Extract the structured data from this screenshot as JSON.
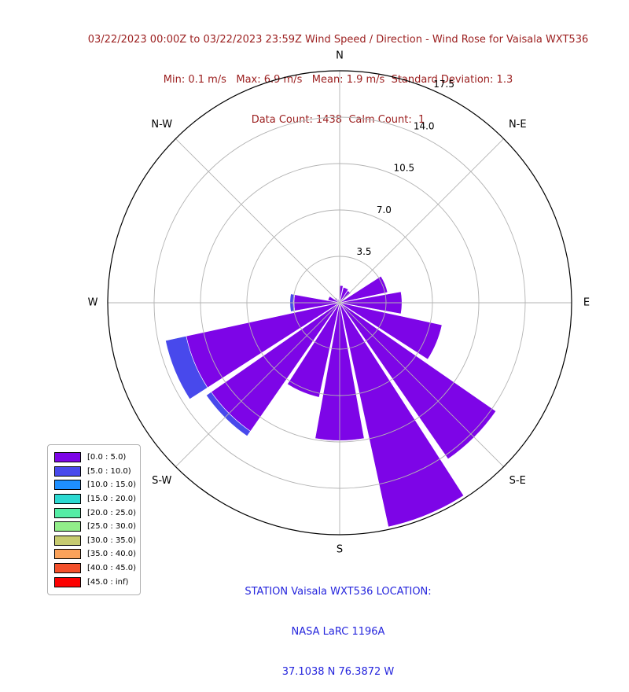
{
  "header": {
    "title_line": "03/22/2023 00:00Z to 03/22/2023 23:59Z Wind Speed / Direction - Wind Rose for Vaisala WXT536",
    "stats_line": "Min: 0.1 m/s   Max: 6.9 m/s   Mean: 1.9 m/s  Standard Deviation: 1.3",
    "counts_line": "Data Count: 1438  Calm Count:  1",
    "text_color": "#9c2020"
  },
  "footer": {
    "line1": "STATION Vaisala WXT536 LOCATION:",
    "line2": "NASA LaRC 1196A",
    "line3": "37.1038 N 76.3872 W",
    "text_color": "#2525dd"
  },
  "legend": {
    "entries": [
      {
        "label": "[0.0 : 5.0)",
        "color": "#7d05e7"
      },
      {
        "label": "[5.0 : 10.0)",
        "color": "#4849ec"
      },
      {
        "label": "[10.0 : 15.0)",
        "color": "#1e8fff"
      },
      {
        "label": "[15.0 : 20.0)",
        "color": "#2cd9d1"
      },
      {
        "label": "[20.0 : 25.0)",
        "color": "#55eda5"
      },
      {
        "label": "[25.0 : 30.0)",
        "color": "#92ee8a"
      },
      {
        "label": "[30.0 : 35.0)",
        "color": "#c7cb70"
      },
      {
        "label": "[35.0 : 40.0)",
        "color": "#fba25a"
      },
      {
        "label": "[40.0 : 45.0)",
        "color": "#f3502b"
      },
      {
        "label": "[45.0 : inf)",
        "color": "#fc0101"
      }
    ]
  },
  "chart_data": {
    "type": "windrose-polar-stacked-bar",
    "title": "03/22/2023 00:00Z to 03/22/2023 23:59Z Wind Speed / Direction - Wind Rose for Vaisala WXT536",
    "stats": {
      "min_ms": 0.1,
      "max_ms": 6.9,
      "mean_ms": 1.9,
      "std_dev": 1.3,
      "data_count": 1438,
      "calm_count": 1
    },
    "speed_bins_ms": [
      "[0.0 : 5.0)",
      "[5.0 : 10.0)",
      "[10.0 : 15.0)",
      "[15.0 : 20.0)",
      "[20.0 : 25.0)",
      "[25.0 : 30.0)",
      "[30.0 : 35.0)",
      "[35.0 : 40.0)",
      "[40.0 : 45.0)",
      "[45.0 : inf)"
    ],
    "radial_axis": {
      "tick_labels": [
        "3.5",
        "7.0",
        "10.5",
        "14.0",
        "17.5"
      ],
      "tick_values": [
        3.5,
        7.0,
        10.5,
        14.0,
        17.5
      ],
      "max": 17.5,
      "label_angle_deg": 25.5,
      "grid": true
    },
    "compass": [
      {
        "label": "N",
        "deg": 0
      },
      {
        "label": "N-E",
        "deg": 45
      },
      {
        "label": "E",
        "deg": 90
      },
      {
        "label": "S-E",
        "deg": 135
      },
      {
        "label": "S",
        "deg": 180
      },
      {
        "label": "S-W",
        "deg": 225
      },
      {
        "label": "W",
        "deg": 270
      },
      {
        "label": "N-W",
        "deg": 315
      }
    ],
    "petals": [
      {
        "direction": "N",
        "start_deg": 1.0,
        "end_deg": 11.5,
        "segments": [
          1.3
        ]
      },
      {
        "direction": "NNE",
        "start_deg": 13.5,
        "end_deg": 33.0,
        "segments": [
          1.2
        ]
      },
      {
        "direction": "NE",
        "start_deg": 34.0,
        "end_deg": 49.0,
        "segments": [
          1.1
        ]
      },
      {
        "direction": "ENE",
        "start_deg": 57.25,
        "end_deg": 77.75,
        "segments": [
          3.7
        ]
      },
      {
        "direction": "E",
        "start_deg": 79.75,
        "end_deg": 100.25,
        "segments": [
          4.7
        ]
      },
      {
        "direction": "ESE",
        "start_deg": 102.25,
        "end_deg": 122.75,
        "segments": [
          7.9
        ]
      },
      {
        "direction": "SE",
        "start_deg": 124.75,
        "end_deg": 145.25,
        "segments": [
          14.35
        ]
      },
      {
        "direction": "SSE",
        "start_deg": 147.25,
        "end_deg": 167.75,
        "segments": [
          17.3
        ]
      },
      {
        "direction": "S",
        "start_deg": 169.75,
        "end_deg": 190.25,
        "segments": [
          10.4
        ]
      },
      {
        "direction": "SSW",
        "start_deg": 192.25,
        "end_deg": 212.75,
        "segments": [
          7.3
        ]
      },
      {
        "direction": "SW",
        "start_deg": 214.75,
        "end_deg": 235.25,
        "segments": [
          11.8,
          0.45
        ]
      },
      {
        "direction": "WSW",
        "start_deg": 237.25,
        "end_deg": 257.75,
        "segments": [
          11.85,
          1.6
        ]
      },
      {
        "direction": "W",
        "start_deg": 259.75,
        "end_deg": 280.25,
        "segments": [
          3.45,
          0.3
        ]
      },
      {
        "direction": "WNW",
        "start_deg": 282.25,
        "end_deg": 302.75,
        "segments": [
          0.9
        ]
      },
      {
        "direction": "NW",
        "start_deg": 304.75,
        "end_deg": 325.25,
        "segments": [
          0.45
        ]
      },
      {
        "direction": "NNW",
        "start_deg": 327.25,
        "end_deg": 347.75,
        "segments": [
          0.25
        ]
      }
    ],
    "grid_color": "#b3b3b3",
    "outline_color": "#000000",
    "legend_position": "lower-left"
  }
}
